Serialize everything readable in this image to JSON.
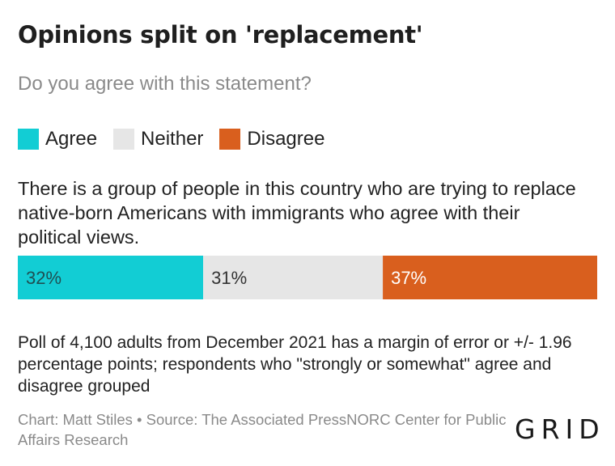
{
  "title": "Opinions split on 'replacement'",
  "subtitle": "Do you agree with this statement?",
  "legend": [
    {
      "label": "Agree",
      "color": "#12cdd4"
    },
    {
      "label": "Neither",
      "color": "#e6e6e6"
    },
    {
      "label": "Disagree",
      "color": "#d95f1e"
    }
  ],
  "question": "There is a group of people in this country who are trying to replace native-born Americans with immigrants who agree with their political views.",
  "note": "Poll of 4,100 adults from December 2021 has a margin of error or +/- 1.96 percentage points; respondents who \"strongly or somewhat\" agree and disagree grouped",
  "source": "Chart: Matt Stiles • Source: The Associated PressNORC Center for Public Affairs Research",
  "logo": "GRID",
  "chart_data": {
    "type": "bar",
    "orientation": "horizontal-stacked",
    "categories": [
      "There is a group of people in this country who are trying to replace native-born Americans with immigrants who agree with their political views."
    ],
    "series": [
      {
        "name": "Agree",
        "values": [
          32
        ],
        "label": "32%",
        "color": "#12cdd4"
      },
      {
        "name": "Neither",
        "values": [
          31
        ],
        "label": "31%",
        "color": "#e6e6e6"
      },
      {
        "name": "Disagree",
        "values": [
          37
        ],
        "label": "37%",
        "color": "#d95f1e"
      }
    ],
    "xlim": [
      0,
      100
    ]
  }
}
